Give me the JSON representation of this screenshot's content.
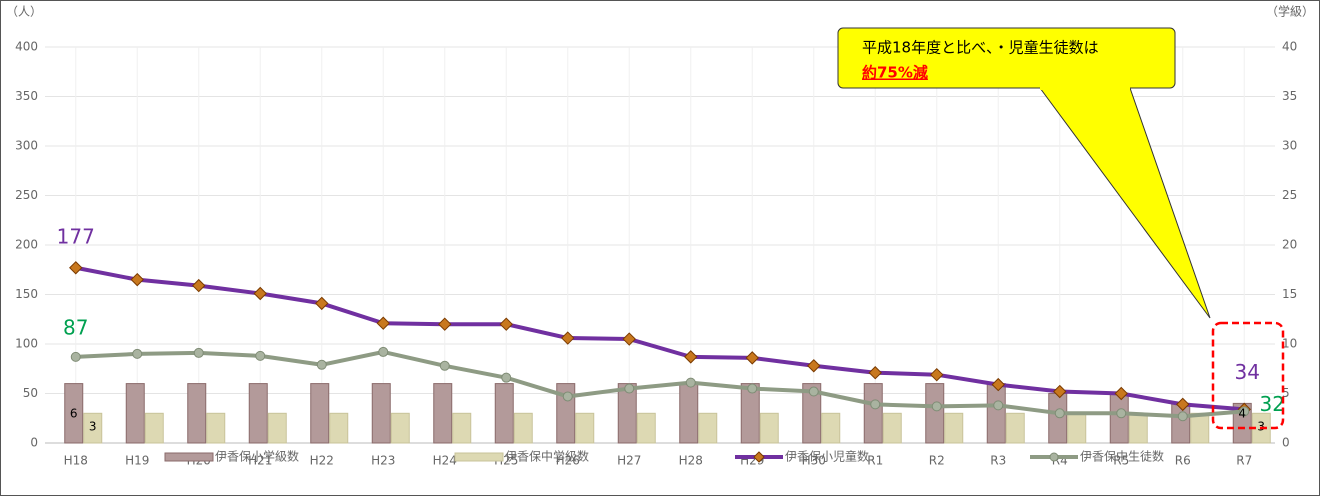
{
  "chart_data": {
    "type": "bar_line",
    "y_label": "（人）",
    "y2_label": "（学級）",
    "categories": [
      "H18",
      "H19",
      "H20",
      "H21",
      "H22",
      "H23",
      "H24",
      "H25",
      "H26",
      "H27",
      "H28",
      "H29",
      "H30",
      "R1",
      "R2",
      "R3",
      "R4",
      "R5",
      "R6",
      "R7"
    ],
    "series": [
      {
        "name": "伊香保小学級数",
        "type": "bar",
        "axis": "y2",
        "color": "#b39a9a",
        "values": [
          6,
          6,
          6,
          6,
          6,
          6,
          6,
          6,
          6,
          6,
          6,
          6,
          6,
          6,
          6,
          6,
          5,
          5,
          4,
          4
        ]
      },
      {
        "name": "伊香保中学級数",
        "type": "bar",
        "axis": "y2",
        "color": "#ddd9b3",
        "values": [
          3,
          3,
          3,
          3,
          3,
          3,
          3,
          3,
          3,
          3,
          3,
          3,
          3,
          3,
          3,
          3,
          3,
          3,
          3,
          3
        ]
      },
      {
        "name": "伊香保小児童数",
        "type": "line",
        "color": "#7030a0",
        "values": [
          177,
          165,
          159,
          151,
          141,
          121,
          120,
          120,
          106,
          105,
          87,
          86,
          78,
          71,
          69,
          59,
          52,
          50,
          39,
          34
        ]
      },
      {
        "name": "伊香保中生徒数",
        "type": "line",
        "color": "#8e9b84",
        "values": [
          87,
          90,
          91,
          88,
          79,
          92,
          78,
          66,
          47,
          55,
          61,
          55,
          52,
          39,
          37,
          38,
          30,
          30,
          27,
          32
        ]
      }
    ],
    "ylim": [
      0,
      400
    ],
    "yticks": [
      0,
      50,
      100,
      150,
      200,
      250,
      300,
      350,
      400
    ],
    "y2lim": [
      0,
      40
    ],
    "y2ticks": [
      0,
      5,
      10,
      15,
      20,
      25,
      30,
      35,
      40
    ],
    "grid": true,
    "legend": "bottom",
    "annotation": [
      "平成18年度と比べ、・児童生徒数は",
      "約75%減"
    ]
  }
}
